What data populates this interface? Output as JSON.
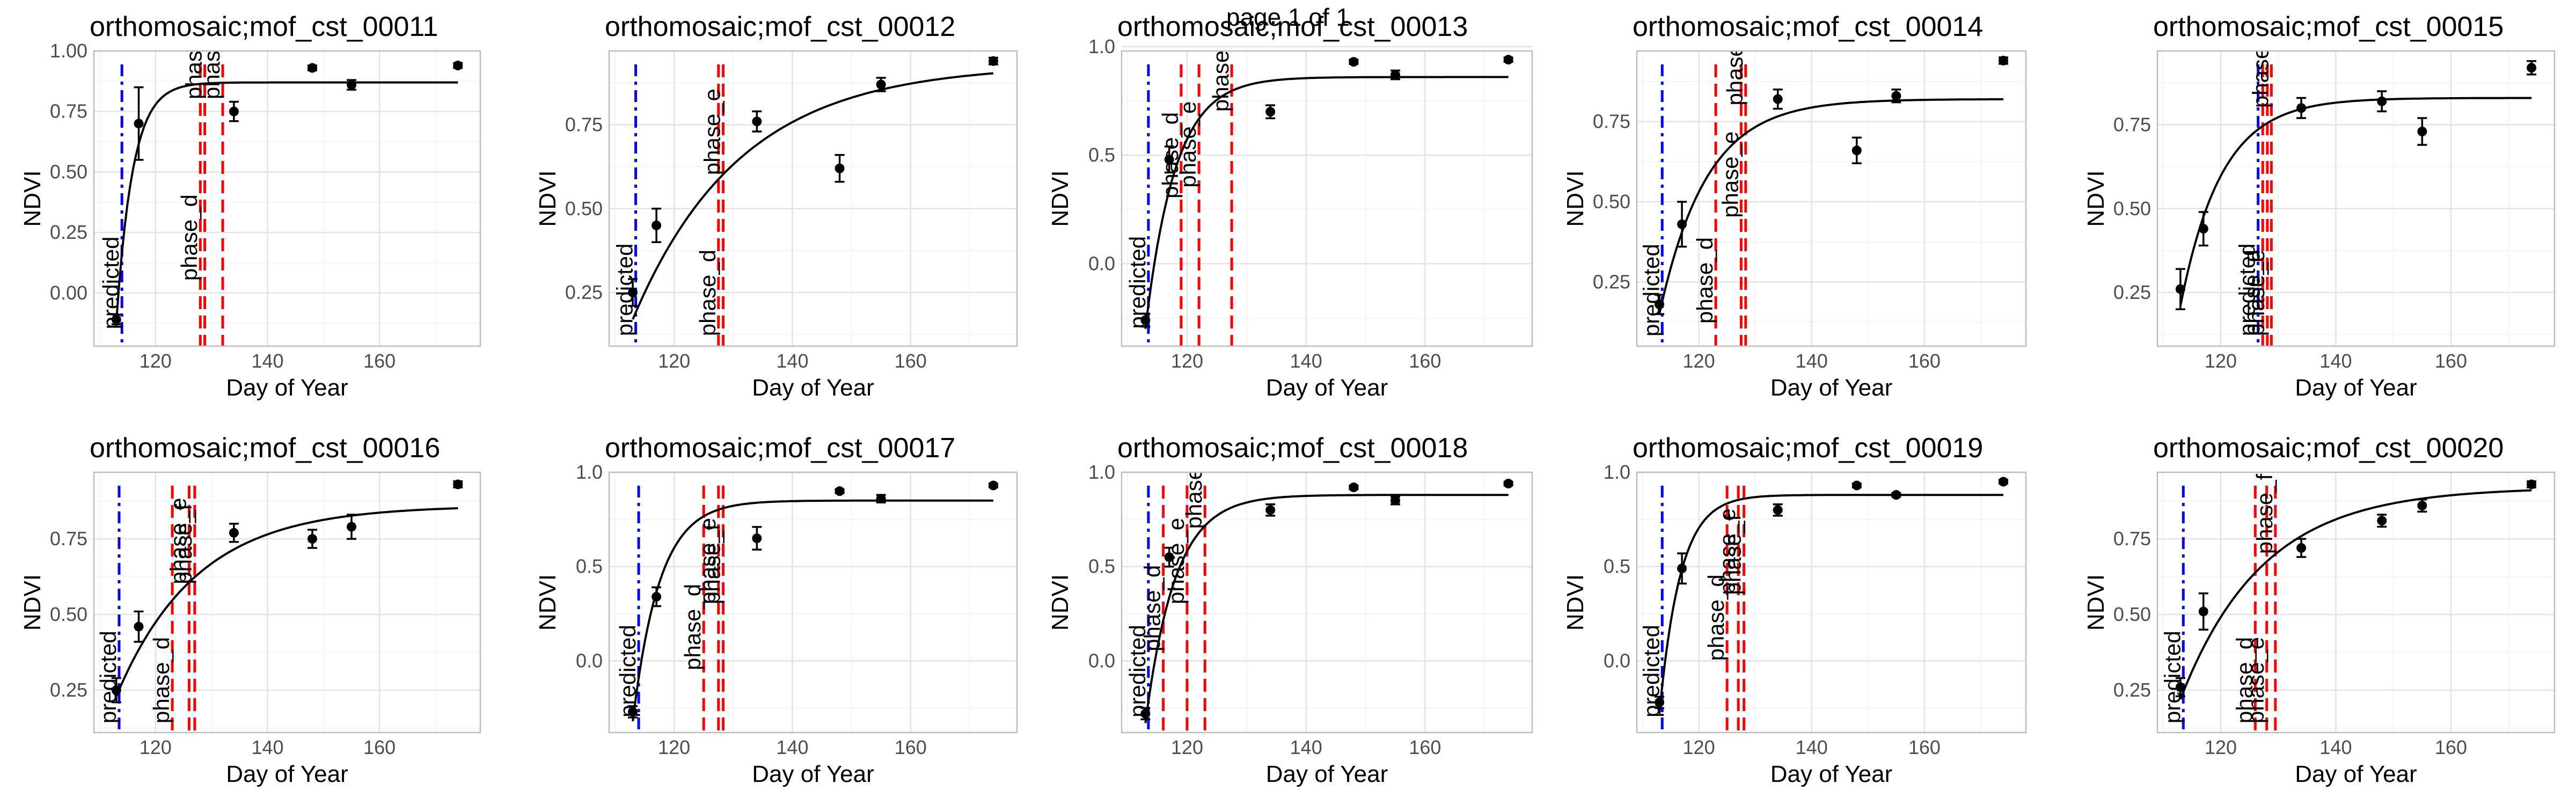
{
  "page_title": "page 1 of 1",
  "style": {
    "vline_predicted_color": "#0000ff",
    "vline_phase_color": "#ff0000",
    "grid_major_color": "#e3e3e3",
    "grid_minor_color": "#f2f2f2",
    "panel_border_color": "#bdbdbd",
    "point_color": "#000000"
  },
  "chart_data": [
    {
      "type": "scatter",
      "title": "orthomosaic;mof_cst_00011",
      "xlabel": "Day of Year",
      "ylabel": "NDVI",
      "xlim": [
        109,
        178
      ],
      "ylim": [
        -0.22,
        1.0
      ],
      "x_ticks": [
        120,
        140,
        160
      ],
      "y_ticks": [
        0.0,
        0.25,
        0.5,
        0.75,
        1.0
      ],
      "y_tick_labels": [
        "0.00",
        "0.25",
        "0.50",
        "0.75",
        "1.00"
      ],
      "points": [
        {
          "x": 113,
          "y": -0.11,
          "err": 0.02
        },
        {
          "x": 117,
          "y": 0.7,
          "err": 0.15
        },
        {
          "x": 134,
          "y": 0.75,
          "err": 0.04
        },
        {
          "x": 148,
          "y": 0.93,
          "err": 0.01
        },
        {
          "x": 155,
          "y": 0.86,
          "err": 0.02
        },
        {
          "x": 174,
          "y": 0.94,
          "err": 0.01
        }
      ],
      "curve": {
        "x0": 113,
        "y0": -0.12,
        "ymax": 0.87,
        "k": 0.34,
        "x_end": 174
      },
      "vlines": [
        {
          "x": 114,
          "kind": "predicted",
          "label": "predicted",
          "label_y": -0.15
        },
        {
          "x": 128,
          "kind": "phase",
          "label": "phase_d",
          "label_y": 0.05
        },
        {
          "x": 128.8,
          "kind": "phase",
          "label": "phase_e",
          "label_y": 0.8
        },
        {
          "x": 132,
          "kind": "phase",
          "label": "phase_",
          "label_y": 0.8
        }
      ]
    },
    {
      "type": "scatter",
      "title": "orthomosaic;mof_cst_00012",
      "xlabel": "Day of Year",
      "ylabel": "NDVI",
      "xlim": [
        109,
        178
      ],
      "ylim": [
        0.09,
        0.97
      ],
      "x_ticks": [
        120,
        140,
        160
      ],
      "y_ticks": [
        0.25,
        0.5,
        0.75
      ],
      "y_tick_labels": [
        "0.25",
        "0.50",
        "0.75"
      ],
      "points": [
        {
          "x": 113,
          "y": 0.25,
          "err": 0.04
        },
        {
          "x": 117,
          "y": 0.45,
          "err": 0.05
        },
        {
          "x": 134,
          "y": 0.76,
          "err": 0.03
        },
        {
          "x": 148,
          "y": 0.62,
          "err": 0.04
        },
        {
          "x": 155,
          "y": 0.87,
          "err": 0.02
        },
        {
          "x": 174,
          "y": 0.94,
          "err": 0.01
        }
      ],
      "curve": {
        "x0": 113,
        "y0": 0.17,
        "ymax": 0.93,
        "k": 0.055,
        "x_end": 174
      },
      "vlines": [
        {
          "x": 113.5,
          "kind": "predicted",
          "label": "predicted",
          "label_y": 0.12
        },
        {
          "x": 127.5,
          "kind": "phase",
          "label": "phase_d",
          "label_y": 0.12
        },
        {
          "x": 128.3,
          "kind": "phase",
          "label": "phase_e",
          "label_y": 0.6
        }
      ]
    },
    {
      "type": "scatter",
      "title": "orthomosaic;mof_cst_00013",
      "xlabel": "Day of Year",
      "ylabel": "NDVI",
      "xlim": [
        109,
        178
      ],
      "ylim": [
        -0.38,
        0.98
      ],
      "x_ticks": [
        120,
        140,
        160
      ],
      "y_ticks": [
        0.0,
        0.5,
        1.0
      ],
      "y_tick_labels": [
        "0.0",
        "0.5",
        "1.0"
      ],
      "points": [
        {
          "x": 113,
          "y": -0.26,
          "err": 0.03
        },
        {
          "x": 117,
          "y": 0.48,
          "err": 0.06
        },
        {
          "x": 134,
          "y": 0.7,
          "err": 0.03
        },
        {
          "x": 148,
          "y": 0.93,
          "err": 0.01
        },
        {
          "x": 155,
          "y": 0.87,
          "err": 0.02
        },
        {
          "x": 174,
          "y": 0.94,
          "err": 0.01
        }
      ],
      "curve": {
        "x0": 113,
        "y0": -0.3,
        "ymax": 0.86,
        "k": 0.2,
        "x_end": 174
      },
      "vlines": [
        {
          "x": 113.5,
          "kind": "predicted",
          "label": "predicted",
          "label_y": -0.3
        },
        {
          "x": 119,
          "kind": "phase",
          "label": "phase_d",
          "label_y": 0.3
        },
        {
          "x": 122,
          "kind": "phase",
          "label": "phase_e",
          "label_y": 0.35
        },
        {
          "x": 127.5,
          "kind": "phase",
          "label": "phase_",
          "label_y": 0.7
        }
      ]
    },
    {
      "type": "scatter",
      "title": "orthomosaic;mof_cst_00014",
      "xlabel": "Day of Year",
      "ylabel": "NDVI",
      "xlim": [
        109,
        178
      ],
      "ylim": [
        0.05,
        0.97
      ],
      "x_ticks": [
        120,
        140,
        160
      ],
      "y_ticks": [
        0.25,
        0.5,
        0.75
      ],
      "y_tick_labels": [
        "0.25",
        "0.50",
        "0.75"
      ],
      "points": [
        {
          "x": 113,
          "y": 0.18,
          "err": 0.03
        },
        {
          "x": 117,
          "y": 0.43,
          "err": 0.07
        },
        {
          "x": 134,
          "y": 0.82,
          "err": 0.03
        },
        {
          "x": 148,
          "y": 0.66,
          "err": 0.04
        },
        {
          "x": 155,
          "y": 0.83,
          "err": 0.02
        },
        {
          "x": 174,
          "y": 0.94,
          "err": 0.01
        }
      ],
      "curve": {
        "x0": 113,
        "y0": 0.15,
        "ymax": 0.82,
        "k": 0.12,
        "x_end": 174
      },
      "vlines": [
        {
          "x": 113.5,
          "kind": "predicted",
          "label": "predicted",
          "label_y": 0.08
        },
        {
          "x": 123,
          "kind": "phase",
          "label": "phase_d",
          "label_y": 0.12
        },
        {
          "x": 127.5,
          "kind": "phase",
          "label": "phase_e",
          "label_y": 0.45
        },
        {
          "x": 128.3,
          "kind": "phase",
          "label": "phase_",
          "label_y": 0.8
        }
      ]
    },
    {
      "type": "scatter",
      "title": "orthomosaic;mof_cst_00015",
      "xlabel": "Day of Year",
      "ylabel": "NDVI",
      "xlim": [
        109,
        178
      ],
      "ylim": [
        0.09,
        0.97
      ],
      "x_ticks": [
        120,
        140,
        160
      ],
      "y_ticks": [
        0.25,
        0.5,
        0.75
      ],
      "y_tick_labels": [
        "0.25",
        "0.50",
        "0.75"
      ],
      "points": [
        {
          "x": 113,
          "y": 0.26,
          "err": 0.06
        },
        {
          "x": 117,
          "y": 0.44,
          "err": 0.05
        },
        {
          "x": 134,
          "y": 0.8,
          "err": 0.03
        },
        {
          "x": 148,
          "y": 0.82,
          "err": 0.03
        },
        {
          "x": 155,
          "y": 0.73,
          "err": 0.04
        },
        {
          "x": 174,
          "y": 0.92,
          "err": 0.02
        }
      ],
      "curve": {
        "x0": 113,
        "y0": 0.21,
        "ymax": 0.83,
        "k": 0.14,
        "x_end": 174
      },
      "vlines": [
        {
          "x": 126.5,
          "kind": "predicted",
          "label": "predicted",
          "label_y": 0.12
        },
        {
          "x": 127.3,
          "kind": "phase",
          "label": "phase_d",
          "label_y": 0.12
        },
        {
          "x": 128.1,
          "kind": "phase",
          "label": "phase_e",
          "label_y": 0.12
        },
        {
          "x": 128.8,
          "kind": "phase",
          "label": "phase_f",
          "label_y": 0.8
        }
      ]
    },
    {
      "type": "scatter",
      "title": "orthomosaic;mof_cst_00016",
      "xlabel": "Day of Year",
      "ylabel": "NDVI",
      "xlim": [
        109,
        178
      ],
      "ylim": [
        0.11,
        0.97
      ],
      "x_ticks": [
        120,
        140,
        160
      ],
      "y_ticks": [
        0.25,
        0.5,
        0.75
      ],
      "y_tick_labels": [
        "0.25",
        "0.50",
        "0.75"
      ],
      "points": [
        {
          "x": 113,
          "y": 0.25,
          "err": 0.04
        },
        {
          "x": 117,
          "y": 0.46,
          "err": 0.05
        },
        {
          "x": 134,
          "y": 0.77,
          "err": 0.03
        },
        {
          "x": 148,
          "y": 0.75,
          "err": 0.03
        },
        {
          "x": 155,
          "y": 0.79,
          "err": 0.04
        },
        {
          "x": 174,
          "y": 0.93,
          "err": 0.01
        }
      ],
      "curve": {
        "x0": 113,
        "y0": 0.23,
        "ymax": 0.86,
        "k": 0.07,
        "x_end": 174
      },
      "vlines": [
        {
          "x": 113.5,
          "kind": "predicted",
          "label": "predicted",
          "label_y": 0.14
        },
        {
          "x": 123,
          "kind": "phase",
          "label": "phase_d",
          "label_y": 0.14
        },
        {
          "x": 126,
          "kind": "phase",
          "label": "phase_e",
          "label_y": 0.6
        },
        {
          "x": 127,
          "kind": "phase",
          "label": "phase_f",
          "label_y": 0.6
        }
      ]
    },
    {
      "type": "scatter",
      "title": "orthomosaic;mof_cst_00017",
      "xlabel": "Day of Year",
      "ylabel": "NDVI",
      "xlim": [
        109,
        178
      ],
      "ylim": [
        -0.38,
        1.0
      ],
      "x_ticks": [
        120,
        140,
        160
      ],
      "y_ticks": [
        0.0,
        0.5,
        1.0
      ],
      "y_tick_labels": [
        "0.0",
        "0.5",
        "1.0"
      ],
      "points": [
        {
          "x": 113,
          "y": -0.27,
          "err": 0.03
        },
        {
          "x": 117,
          "y": 0.34,
          "err": 0.05
        },
        {
          "x": 134,
          "y": 0.65,
          "err": 0.06
        },
        {
          "x": 148,
          "y": 0.9,
          "err": 0.01
        },
        {
          "x": 155,
          "y": 0.86,
          "err": 0.02
        },
        {
          "x": 174,
          "y": 0.93,
          "err": 0.01
        }
      ],
      "curve": {
        "x0": 113,
        "y0": -0.32,
        "ymax": 0.85,
        "k": 0.22,
        "x_end": 174
      },
      "vlines": [
        {
          "x": 114,
          "kind": "predicted",
          "label": "predicted",
          "label_y": -0.3
        },
        {
          "x": 125,
          "kind": "phase",
          "label": "phase_d",
          "label_y": -0.05
        },
        {
          "x": 127.5,
          "kind": "phase",
          "label": "phase_e",
          "label_y": 0.3
        },
        {
          "x": 128.3,
          "kind": "phase",
          "label": "phase_f",
          "label_y": 0.3
        }
      ]
    },
    {
      "type": "scatter",
      "title": "orthomosaic;mof_cst_00018",
      "xlabel": "Day of Year",
      "ylabel": "NDVI",
      "xlim": [
        109,
        178
      ],
      "ylim": [
        -0.38,
        1.0
      ],
      "x_ticks": [
        120,
        140,
        160
      ],
      "y_ticks": [
        0.0,
        0.5,
        1.0
      ],
      "y_tick_labels": [
        "0.0",
        "0.5",
        "1.0"
      ],
      "points": [
        {
          "x": 113,
          "y": -0.28,
          "err": 0.03
        },
        {
          "x": 117,
          "y": 0.55,
          "err": 0.05
        },
        {
          "x": 134,
          "y": 0.8,
          "err": 0.03
        },
        {
          "x": 148,
          "y": 0.92,
          "err": 0.01
        },
        {
          "x": 155,
          "y": 0.85,
          "err": 0.02
        },
        {
          "x": 174,
          "y": 0.94,
          "err": 0.01
        }
      ],
      "curve": {
        "x0": 113,
        "y0": -0.33,
        "ymax": 0.88,
        "k": 0.2,
        "x_end": 174
      },
      "vlines": [
        {
          "x": 113.5,
          "kind": "predicted",
          "label": "predicted",
          "label_y": -0.3
        },
        {
          "x": 116,
          "kind": "phase",
          "label": "phase_d",
          "label_y": 0.05
        },
        {
          "x": 120,
          "kind": "phase",
          "label": "phase_e",
          "label_y": 0.3
        },
        {
          "x": 123,
          "kind": "phase",
          "label": "phase_f",
          "label_y": 0.7
        }
      ]
    },
    {
      "type": "scatter",
      "title": "orthomosaic;mof_cst_00019",
      "xlabel": "Day of Year",
      "ylabel": "NDVI",
      "xlim": [
        109,
        178
      ],
      "ylim": [
        -0.38,
        1.0
      ],
      "x_ticks": [
        120,
        140,
        160
      ],
      "y_ticks": [
        0.0,
        0.5,
        1.0
      ],
      "y_tick_labels": [
        "0.0",
        "0.5",
        "1.0"
      ],
      "points": [
        {
          "x": 113,
          "y": -0.22,
          "err": 0.03
        },
        {
          "x": 117,
          "y": 0.49,
          "err": 0.08
        },
        {
          "x": 134,
          "y": 0.8,
          "err": 0.03
        },
        {
          "x": 148,
          "y": 0.93,
          "err": 0.01
        },
        {
          "x": 155,
          "y": 0.88,
          "err": 0.01
        },
        {
          "x": 174,
          "y": 0.95,
          "err": 0.01
        }
      ],
      "curve": {
        "x0": 113,
        "y0": -0.28,
        "ymax": 0.88,
        "k": 0.27,
        "x_end": 174
      },
      "vlines": [
        {
          "x": 113.5,
          "kind": "predicted",
          "label": "predicted",
          "label_y": -0.3
        },
        {
          "x": 125,
          "kind": "phase",
          "label": "phase_d",
          "label_y": 0.0
        },
        {
          "x": 127,
          "kind": "phase",
          "label": "phase_e",
          "label_y": 0.35
        },
        {
          "x": 128,
          "kind": "phase",
          "label": "phase_f",
          "label_y": 0.35
        }
      ]
    },
    {
      "type": "scatter",
      "title": "orthomosaic;mof_cst_00020",
      "xlabel": "Day of Year",
      "ylabel": "NDVI",
      "xlim": [
        109,
        178
      ],
      "ylim": [
        0.11,
        0.97
      ],
      "x_ticks": [
        120,
        140,
        160
      ],
      "y_ticks": [
        0.25,
        0.5,
        0.75
      ],
      "y_tick_labels": [
        "0.25",
        "0.50",
        "0.75"
      ],
      "points": [
        {
          "x": 113,
          "y": 0.26,
          "err": 0.03
        },
        {
          "x": 117,
          "y": 0.51,
          "err": 0.06
        },
        {
          "x": 134,
          "y": 0.72,
          "err": 0.03
        },
        {
          "x": 148,
          "y": 0.81,
          "err": 0.02
        },
        {
          "x": 155,
          "y": 0.86,
          "err": 0.02
        },
        {
          "x": 174,
          "y": 0.93,
          "err": 0.01
        }
      ],
      "curve": {
        "x0": 113,
        "y0": 0.22,
        "ymax": 0.92,
        "k": 0.07,
        "x_end": 174
      },
      "vlines": [
        {
          "x": 113.5,
          "kind": "predicted",
          "label": "predicted",
          "label_y": 0.14
        },
        {
          "x": 126,
          "kind": "phase",
          "label": "phase_d",
          "label_y": 0.14
        },
        {
          "x": 128,
          "kind": "phase",
          "label": "phase_e",
          "label_y": 0.14
        },
        {
          "x": 129.5,
          "kind": "phase",
          "label": "phase_f",
          "label_y": 0.7
        }
      ]
    }
  ]
}
